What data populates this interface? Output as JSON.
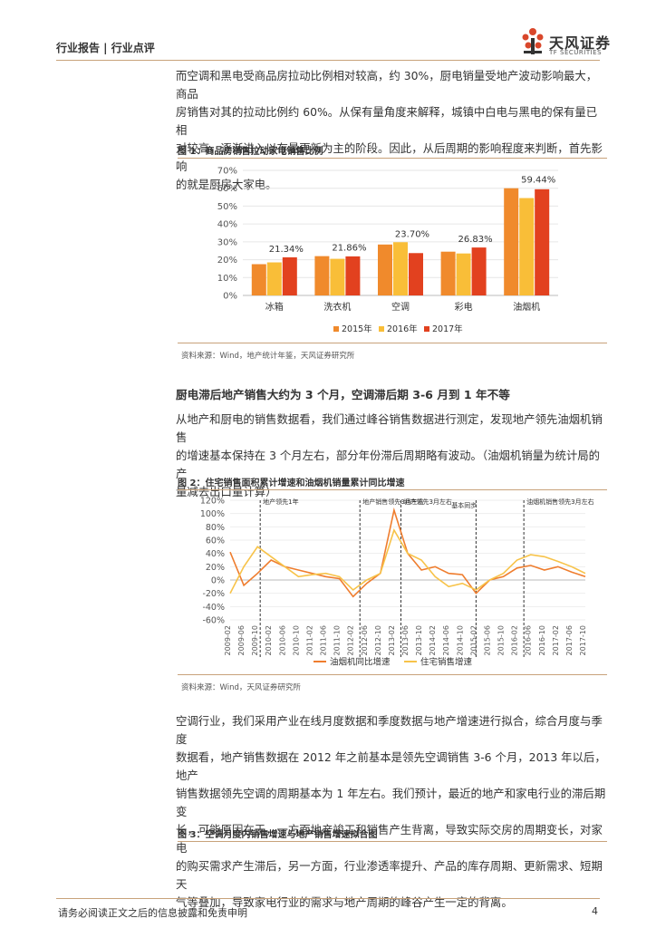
{
  "header": {
    "left": "行业报告 | 行业点评",
    "logo_cn": "天风证券",
    "logo_en": "TF SECURITIES"
  },
  "para1": [
    "而空调和黑电受商品房拉动比例相对较高，约 30%，厨电销量受地产波动影响最大，商品",
    "房销售对其的拉动比例约 60%。从保有量角度来解释，城镇中白电与黑电的保有量已相",
    "对较高，逐渐进入以存量更新为主的阶段。因此，从后周期的影响程度来判断，首先影响",
    "的就是厨房大家电。"
  ],
  "fig1": {
    "title": "图 1：商品房销售拉动家电销售比例",
    "source": "资料来源：Wind，地产统计年鉴，天风证券研究所"
  },
  "subhead": "厨电滞后地产销售大约为 3 个月，空调滞后期 3-6 月到 1 年不等",
  "para2": [
    "从地产和厨电的销售数据看，我们通过峰谷销售数据进行测定，发现地产领先油烟机销售",
    "的增速基本保持在 3 个月左右，部分年份滞后周期略有波动。（油烟机销量为统计局的产",
    "量减去出口量计算）"
  ],
  "fig2": {
    "title": "图 2：住宅销售面积累计增速和油烟机销量累计同比增速",
    "source": "资料来源：Wind，天风证券研究所"
  },
  "para3": [
    "空调行业，我们采用产业在线月度数据和季度数据与地产增速进行拟合，综合月度与季度",
    "数据看，地产销售数据在 2012 年之前基本是领先空调销售 3-6 个月，2013 年以后，地产",
    "销售数据领先空调的周期基本为 1 年左右。我们预计，最近的地产和家电行业的滞后期变",
    "长，可能原因在于，一方面地产竣工和销售产生背离，导致实际交房的周期变长，对家电",
    "的购买需求产生滞后，另一方面，行业渗透率提升、产品的库存周期、更新需求、短期天",
    "气等叠加，导致家电行业的需求与地产周期的峰谷产生一定的背离。"
  ],
  "fig3": {
    "title": "图 3：空调月度内销售增速与地产销售增速拟合图"
  },
  "footer": {
    "text": "请务必阅读正文之后的信息披露和免责申明",
    "page": "4"
  },
  "colors": {
    "y2015": "#f08a2c",
    "y2016": "#f9be38",
    "y2017": "#e2411f",
    "hood": "#ef7d2e",
    "housing": "#f7c34a",
    "accent_rule": "#c8a27a"
  },
  "chart_data": [
    {
      "type": "bar",
      "categories": [
        "冰箱",
        "洗衣机",
        "空调",
        "彩电",
        "油烟机"
      ],
      "series": [
        {
          "name": "2015年",
          "values": [
            17.5,
            22.0,
            28.5,
            24.5,
            60.0
          ]
        },
        {
          "name": "2016年",
          "values": [
            18.5,
            20.5,
            29.8,
            23.5,
            54.5
          ]
        },
        {
          "name": "2017年",
          "values": [
            21.34,
            21.86,
            23.7,
            26.83,
            59.44
          ]
        }
      ],
      "data_labels": [
        "21.34%",
        "21.86%",
        "23.70%",
        "26.83%",
        "59.44%"
      ],
      "yticks": [
        "0%",
        "10%",
        "20%",
        "30%",
        "40%",
        "50%",
        "60%",
        "70%"
      ],
      "ylim": [
        0,
        70
      ],
      "legend": "bottom"
    },
    {
      "type": "line",
      "x": [
        "2009-02",
        "2009-06",
        "2009-10",
        "2010-02",
        "2010-06",
        "2010-10",
        "2011-02",
        "2011-06",
        "2011-10",
        "2012-02",
        "2012-06",
        "2012-10",
        "2013-02",
        "2013-06",
        "2013-10",
        "2014-02",
        "2014-06",
        "2014-10",
        "2015-02",
        "2015-06",
        "2015-10",
        "2016-02",
        "2016-06",
        "2016-10",
        "2017-02",
        "2017-06",
        "2017-10"
      ],
      "series": [
        {
          "name": "油烟机同比增速",
          "values": [
            42,
            -8,
            10,
            30,
            20,
            15,
            10,
            5,
            2,
            -25,
            -5,
            10,
            105,
            40,
            15,
            20,
            10,
            8,
            -20,
            0,
            5,
            18,
            22,
            15,
            20,
            12,
            5
          ]
        },
        {
          "name": "住宅销售增速",
          "values": [
            -20,
            20,
            50,
            35,
            20,
            5,
            8,
            10,
            5,
            -15,
            0,
            10,
            75,
            40,
            30,
            5,
            -10,
            -5,
            -15,
            0,
            10,
            30,
            38,
            35,
            28,
            20,
            10
          ]
        }
      ],
      "yticks": [
        "-60%",
        "-40%",
        "-20%",
        "0%",
        "20%",
        "40%",
        "60%",
        "80%",
        "100%",
        "120%"
      ],
      "ylim": [
        -60,
        120
      ],
      "annotations": [
        "地产领先1年",
        "地产销售领先3月左右",
        "地产领先3月左右",
        "基本同步",
        "油烟机销售领先3月左右"
      ],
      "legend": "bottom"
    }
  ]
}
